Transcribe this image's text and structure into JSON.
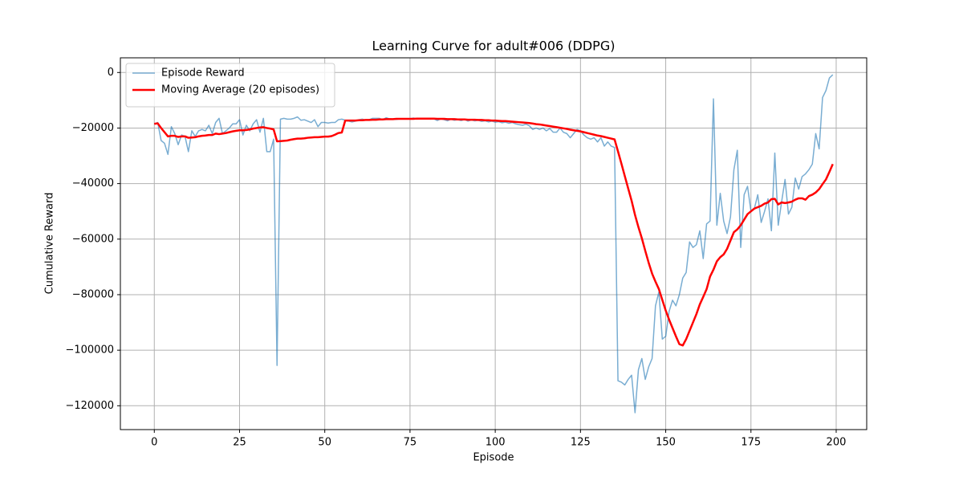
{
  "chart_data": {
    "type": "line",
    "title": "Learning Curve for adult#006 (DDPG)",
    "x_label": "Episode",
    "y_label": "Cumulative Reward",
    "x": [
      0,
      1,
      2,
      3,
      4,
      5,
      6,
      7,
      8,
      9,
      10,
      11,
      12,
      13,
      14,
      15,
      16,
      17,
      18,
      19,
      20,
      21,
      22,
      23,
      24,
      25,
      26,
      27,
      28,
      29,
      30,
      31,
      32,
      33,
      34,
      35,
      36,
      37,
      38,
      39,
      40,
      41,
      42,
      43,
      44,
      45,
      46,
      47,
      48,
      49,
      50,
      51,
      52,
      53,
      54,
      55,
      56,
      57,
      58,
      59,
      60,
      61,
      62,
      63,
      64,
      65,
      66,
      67,
      68,
      69,
      70,
      71,
      72,
      73,
      74,
      75,
      76,
      77,
      78,
      79,
      80,
      81,
      82,
      83,
      84,
      85,
      86,
      87,
      88,
      89,
      90,
      91,
      92,
      93,
      94,
      95,
      96,
      97,
      98,
      99,
      100,
      101,
      102,
      103,
      104,
      105,
      106,
      107,
      108,
      109,
      110,
      111,
      112,
      113,
      114,
      115,
      116,
      117,
      118,
      119,
      120,
      121,
      122,
      123,
      124,
      125,
      126,
      127,
      128,
      129,
      130,
      131,
      132,
      133,
      134,
      135,
      136,
      137,
      138,
      139,
      140,
      141,
      142,
      143,
      144,
      145,
      146,
      147,
      148,
      149,
      150,
      151,
      152,
      153,
      154,
      155,
      156,
      157,
      158,
      159,
      160,
      161,
      162,
      163,
      164,
      165,
      166,
      167,
      168,
      169,
      170,
      171,
      172,
      173,
      174,
      175,
      176,
      177,
      178,
      179,
      180,
      181,
      182,
      183,
      184,
      185,
      186,
      187,
      188,
      189,
      190,
      191,
      192,
      193,
      194,
      195,
      196,
      197,
      198,
      199
    ],
    "series": [
      {
        "name": "Episode Reward",
        "color": "#1f77b4",
        "alpha": 0.6,
        "linewidth": 1.5,
        "values": [
          -18500,
          -18000,
          -24500,
          -25500,
          -29500,
          -19500,
          -22000,
          -26000,
          -22500,
          -23000,
          -28500,
          -21000,
          -23000,
          -21000,
          -20500,
          -21000,
          -19000,
          -22000,
          -18000,
          -16500,
          -22000,
          -21000,
          -20000,
          -18500,
          -18500,
          -17000,
          -22500,
          -19000,
          -21000,
          -18500,
          -17000,
          -21500,
          -16500,
          -28500,
          -28500,
          -24000,
          -105500,
          -16800,
          -16500,
          -16800,
          -16800,
          -16500,
          -16000,
          -17200,
          -17000,
          -17500,
          -18000,
          -17000,
          -19500,
          -18000,
          -18000,
          -18200,
          -18000,
          -18000,
          -17000,
          -16800,
          -17200,
          -17500,
          -17800,
          -17500,
          -17000,
          -16800,
          -17200,
          -17000,
          -16500,
          -16500,
          -16500,
          -17000,
          -16300,
          -16700,
          -16800,
          -16900,
          -16700,
          -16600,
          -16600,
          -16700,
          -16400,
          -16800,
          -16500,
          -16700,
          -16600,
          -16800,
          -16700,
          -17300,
          -16700,
          -17000,
          -17400,
          -16800,
          -17200,
          -17000,
          -17300,
          -16900,
          -17500,
          -17100,
          -17400,
          -17200,
          -17600,
          -17400,
          -17800,
          -17500,
          -17900,
          -17700,
          -18100,
          -17900,
          -18300,
          -18000,
          -18500,
          -18800,
          -19000,
          -18600,
          -19200,
          -20500,
          -20000,
          -20500,
          -20000,
          -21000,
          -20200,
          -21500,
          -21500,
          -20000,
          -21500,
          -22000,
          -23500,
          -22000,
          -20500,
          -21000,
          -22500,
          -23500,
          -24000,
          -23500,
          -25000,
          -23500,
          -26500,
          -25000,
          -26500,
          -27000,
          -111000,
          -111500,
          -112500,
          -110500,
          -109000,
          -122500,
          -107000,
          -103000,
          -110500,
          -106000,
          -103000,
          -84000,
          -79000,
          -96000,
          -95000,
          -86000,
          -82000,
          -84000,
          -80000,
          -74000,
          -72000,
          -61000,
          -63000,
          -62000,
          -57000,
          -67000,
          -54500,
          -53500,
          -9500,
          -55000,
          -43500,
          -53500,
          -58000,
          -52000,
          -35000,
          -28000,
          -63000,
          -44000,
          -41000,
          -50000,
          -49000,
          -44000,
          -54000,
          -50000,
          -45500,
          -57000,
          -29000,
          -55000,
          -46500,
          -38500,
          -51000,
          -48500,
          -38000,
          -42000,
          -37500,
          -36500,
          -35000,
          -33000,
          -22000,
          -27500,
          -9000,
          -6500,
          -2000,
          -800
        ]
      },
      {
        "name": "Moving Average (20 episodes)",
        "color": "#ff0000",
        "alpha": 1,
        "linewidth": 2.5,
        "values": [
          -18500,
          -18300,
          -20000,
          -21500,
          -23000,
          -22800,
          -22800,
          -23200,
          -23000,
          -23000,
          -23500,
          -23400,
          -23300,
          -23000,
          -22800,
          -22700,
          -22500,
          -22500,
          -22000,
          -22200,
          -22000,
          -21800,
          -21500,
          -21200,
          -21000,
          -20800,
          -20800,
          -20700,
          -20500,
          -20200,
          -20000,
          -19800,
          -19700,
          -20000,
          -20200,
          -20500,
          -24800,
          -24700,
          -24600,
          -24500,
          -24200,
          -24000,
          -23800,
          -23800,
          -23700,
          -23500,
          -23400,
          -23300,
          -23300,
          -23200,
          -23100,
          -23100,
          -22900,
          -22400,
          -21800,
          -21600,
          -17300,
          -17300,
          -17300,
          -17300,
          -17200,
          -17200,
          -17100,
          -17100,
          -17000,
          -17000,
          -16900,
          -16900,
          -16800,
          -16800,
          -16800,
          -16700,
          -16700,
          -16700,
          -16700,
          -16700,
          -16700,
          -16600,
          -16600,
          -16600,
          -16600,
          -16600,
          -16600,
          -16700,
          -16700,
          -16700,
          -16800,
          -16800,
          -16800,
          -16900,
          -16900,
          -16900,
          -17000,
          -17000,
          -17000,
          -17100,
          -17100,
          -17200,
          -17200,
          -17300,
          -17300,
          -17400,
          -17500,
          -17500,
          -17600,
          -17700,
          -17800,
          -17900,
          -18000,
          -18100,
          -18200,
          -18400,
          -18600,
          -18700,
          -18900,
          -19100,
          -19300,
          -19500,
          -19700,
          -19900,
          -20100,
          -20300,
          -20600,
          -20800,
          -21000,
          -21200,
          -21500,
          -21800,
          -22100,
          -22400,
          -22700,
          -22900,
          -23200,
          -23500,
          -23800,
          -24100,
          -28400,
          -32800,
          -37300,
          -41800,
          -46200,
          -51300,
          -55700,
          -59700,
          -64200,
          -68500,
          -72400,
          -75300,
          -78000,
          -81900,
          -85700,
          -89000,
          -92000,
          -95000,
          -97800,
          -98300,
          -96000,
          -93000,
          -90000,
          -87000,
          -83500,
          -80800,
          -78000,
          -73500,
          -71000,
          -68000,
          -66500,
          -65500,
          -63500,
          -60500,
          -57500,
          -56500,
          -55000,
          -53000,
          -51000,
          -50000,
          -49000,
          -48500,
          -48000,
          -47200,
          -46800,
          -45600,
          -45500,
          -47500,
          -46800,
          -47000,
          -46800,
          -46500,
          -45800,
          -45300,
          -45300,
          -45800,
          -44500,
          -44000,
          -43200,
          -42000,
          -40200,
          -38500,
          -35800,
          -33000
        ]
      }
    ],
    "xlim": [
      -9.95,
      208.95
    ],
    "xticks": [
      0,
      25,
      50,
      75,
      100,
      125,
      150,
      175,
      200
    ],
    "ylim": [
      -128585,
      5285
    ],
    "yticks": [
      {
        "value": -120000,
        "label": "−120000"
      },
      {
        "value": -100000,
        "label": "−100000"
      },
      {
        "value": -80000,
        "label": "−80000"
      },
      {
        "value": -60000,
        "label": "−60000"
      },
      {
        "value": -40000,
        "label": "−40000"
      },
      {
        "value": -20000,
        "label": "−20000"
      },
      0
    ],
    "grid": true,
    "legend": "upper left"
  }
}
